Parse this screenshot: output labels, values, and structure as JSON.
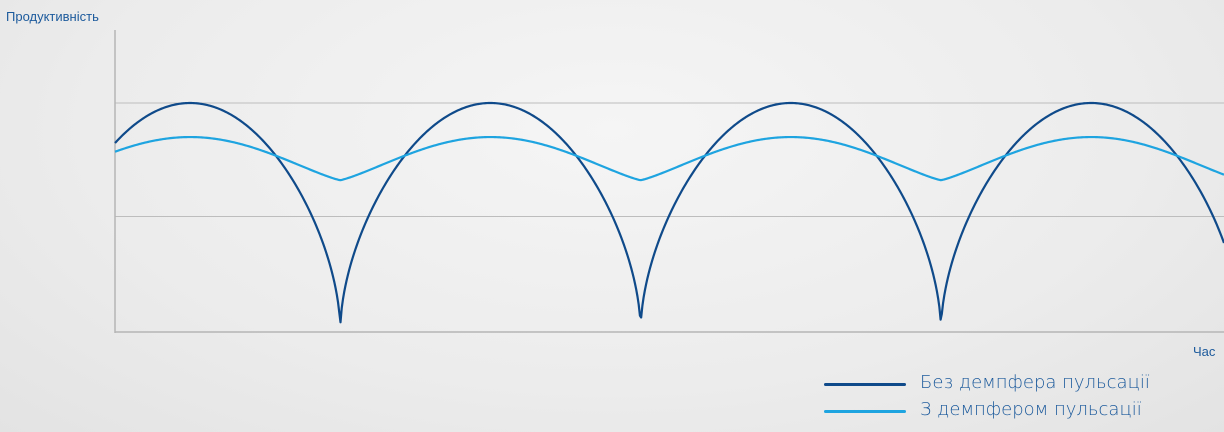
{
  "chart_data": {
    "type": "line",
    "ylabel": "Продуктивність",
    "xlabel": "Час",
    "grid": "horizontal",
    "legend_position": "bottom-right",
    "xlim": [
      0,
      4.8
    ],
    "ylim": [
      0,
      1.0
    ],
    "gridlines_y": [
      0.5,
      1.0
    ],
    "series": [
      {
        "name": "Без демпфера пульсації",
        "color": "#0f4a8a",
        "period": 1.3,
        "phase_at_x0": 0.75,
        "max": 1.0,
        "min": 0.0
      },
      {
        "name": "З демпфером пульсації",
        "color": "#1ea4e0",
        "period": 1.3,
        "phase_at_x0": 0.75,
        "max": 0.85,
        "min": 0.66
      }
    ]
  }
}
